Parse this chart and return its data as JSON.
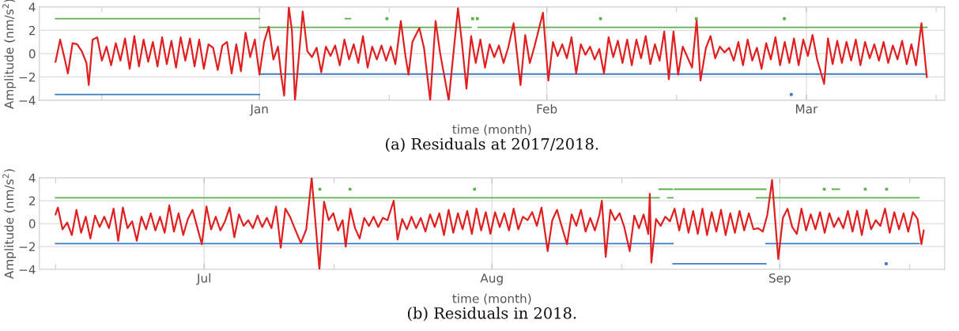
{
  "chart_data": [
    {
      "type": "line",
      "title": "(a) Residuals at 2017/2018.",
      "xlabel": "time (month)",
      "ylabel": "Amplitude (nm/s$^{2}$)",
      "xlim": [
        "2017-12-08T06:00",
        "2018-03-15T22:00"
      ],
      "xticks": [
        {
          "value": "2017-12-15",
          "label": null
        },
        {
          "value": "2018-01-01",
          "label": "Jan"
        },
        {
          "value": "2018-01-15",
          "label": null
        },
        {
          "value": "2018-02-01",
          "label": "Feb"
        },
        {
          "value": "2018-02-15",
          "label": null
        },
        {
          "value": "2018-03-01",
          "label": "Mar"
        },
        {
          "value": "2018-03-15",
          "label": null
        }
      ],
      "ylim": [
        -4,
        4
      ],
      "yticks": [
        -4,
        -2,
        0,
        2,
        4
      ],
      "grid": true,
      "series": [
        {
          "color": "#e02020",
          "x": [
            "2017-12-10T00:00",
            "2017-12-10T12:00",
            "2017-12-11T00:00",
            "2017-12-11T08:00",
            "2017-12-11T20:00",
            "2017-12-12T08:00",
            "2017-12-12T20:00",
            "2017-12-13T08:00",
            "2017-12-13T14:00",
            "2017-12-14T00:00",
            "2017-12-14T12:00",
            "2017-12-15T00:00",
            "2017-12-15T12:00",
            "2017-12-16T00:00",
            "2017-12-16T12:00",
            "2017-12-17T00:00",
            "2017-12-17T12:00",
            "2017-12-18T00:00",
            "2017-12-18T12:00",
            "2017-12-19T00:00",
            "2017-12-19T12:00",
            "2017-12-20T00:00",
            "2017-12-20T12:00",
            "2017-12-21T00:00",
            "2017-12-21T12:00",
            "2017-12-22T00:00",
            "2017-12-22T12:00",
            "2017-12-23T00:00",
            "2017-12-23T12:00",
            "2017-12-24T00:00",
            "2017-12-24T12:00",
            "2017-12-25T00:00",
            "2017-12-25T12:00",
            "2017-12-26T00:00",
            "2017-12-26T12:00",
            "2017-12-27T00:00",
            "2017-12-27T12:00",
            "2017-12-28T00:00",
            "2017-12-28T12:00",
            "2017-12-29T00:00",
            "2017-12-29T12:00",
            "2017-12-30T00:00",
            "2017-12-30T12:00",
            "2017-12-31T00:00",
            "2017-12-31T12:00",
            "2018-01-01T00:00",
            "2018-01-01T12:00",
            "2018-01-02T00:00",
            "2018-01-02T12:00",
            "2018-01-03T00:00",
            "2018-01-03T08:00",
            "2018-01-03T16:00",
            "2018-01-04T04:00",
            "2018-01-04T12:00",
            "2018-01-04T20:00",
            "2018-01-05T08:00",
            "2018-01-05T16:00",
            "2018-01-06T04:00",
            "2018-01-06T16:00",
            "2018-01-07T04:00",
            "2018-01-07T16:00",
            "2018-01-08T04:00",
            "2018-01-08T16:00",
            "2018-01-09T04:00",
            "2018-01-09T16:00",
            "2018-01-10T04:00",
            "2018-01-10T16:00",
            "2018-01-11T04:00",
            "2018-01-11T16:00",
            "2018-01-12T04:00",
            "2018-01-12T16:00",
            "2018-01-13T04:00",
            "2018-01-13T16:00",
            "2018-01-14T04:00",
            "2018-01-14T16:00",
            "2018-01-15T04:00",
            "2018-01-15T16:00",
            "2018-01-16T06:00",
            "2018-01-16T18:00",
            "2018-01-17T02:00",
            "2018-01-17T12:00",
            "2018-01-18T06:00",
            "2018-01-18T18:00",
            "2018-01-19T10:00",
            "2018-01-20T00:00",
            "2018-01-20T12:00",
            "2018-01-21T10:00",
            "2018-01-22T10:00",
            "2018-01-22T20:00",
            "2018-01-23T08:00",
            "2018-01-23T20:00",
            "2018-01-24T08:00",
            "2018-01-24T20:00",
            "2018-01-25T08:00",
            "2018-01-25T20:00",
            "2018-01-26T08:00",
            "2018-01-26T20:00",
            "2018-01-27T08:00",
            "2018-01-27T20:00",
            "2018-01-28T10:00",
            "2018-01-29T04:00",
            "2018-01-29T16:00",
            "2018-01-30T04:00",
            "2018-01-30T16:00",
            "2018-01-31T14:00",
            "2018-02-01T04:00",
            "2018-02-01T16:00",
            "2018-02-02T04:00",
            "2018-02-02T16:00",
            "2018-02-03T04:00",
            "2018-02-03T16:00",
            "2018-02-04T04:00",
            "2018-02-04T16:00",
            "2018-02-05T04:00",
            "2018-02-05T16:00",
            "2018-02-06T04:00",
            "2018-02-06T16:00",
            "2018-02-07T04:00",
            "2018-02-07T16:00",
            "2018-02-08T04:00",
            "2018-02-08T16:00",
            "2018-02-09T04:00",
            "2018-02-09T16:00",
            "2018-02-10T04:00",
            "2018-02-10T16:00",
            "2018-02-11T04:00",
            "2018-02-11T16:00",
            "2018-02-12T04:00",
            "2018-02-12T16:00",
            "2018-02-13T04:00",
            "2018-02-13T16:00",
            "2018-02-14T04:00",
            "2018-02-14T16:00",
            "2018-02-15T04:00",
            "2018-02-15T16:00",
            "2018-02-16T04:00",
            "2018-02-16T16:00",
            "2018-02-17T04:00",
            "2018-02-17T14:00",
            "2018-02-18T04:00",
            "2018-02-18T16:00",
            "2018-02-19T04:00",
            "2018-02-19T16:00",
            "2018-02-20T04:00",
            "2018-02-20T16:00",
            "2018-02-21T04:00",
            "2018-02-21T16:00",
            "2018-02-22T04:00",
            "2018-02-22T16:00",
            "2018-02-23T04:00",
            "2018-02-23T16:00",
            "2018-02-24T04:00",
            "2018-02-24T16:00",
            "2018-02-25T04:00",
            "2018-02-25T16:00",
            "2018-02-26T04:00",
            "2018-02-26T16:00",
            "2018-02-27T04:00",
            "2018-02-27T16:00",
            "2018-02-28T04:00",
            "2018-02-28T16:00",
            "2018-03-01T04:00",
            "2018-03-01T16:00",
            "2018-03-02T04:00",
            "2018-03-02T22:00",
            "2018-03-03T08:00",
            "2018-03-03T20:00",
            "2018-03-04T08:00",
            "2018-03-04T20:00",
            "2018-03-05T08:00",
            "2018-03-05T20:00",
            "2018-03-06T08:00",
            "2018-03-06T20:00",
            "2018-03-07T08:00",
            "2018-03-07T20:00",
            "2018-03-08T08:00",
            "2018-03-08T20:00",
            "2018-03-09T08:00",
            "2018-03-09T20:00",
            "2018-03-10T08:00",
            "2018-03-10T20:00",
            "2018-03-11T08:00",
            "2018-03-11T20:00",
            "2018-03-12T08:00",
            "2018-03-12T20:00",
            "2018-03-13T10:00",
            "2018-03-14T00:00"
          ],
          "values": [
            -0.7,
            1.2,
            -0.5,
            -1.7,
            0.9,
            0.8,
            0.2,
            -0.8,
            -2.7,
            1.2,
            1.4,
            -0.6,
            0.6,
            -1.0,
            0.9,
            -0.6,
            1.3,
            -1.3,
            1.5,
            -1.1,
            1.2,
            -0.7,
            1.0,
            -1.1,
            1.4,
            -0.9,
            1.1,
            -1.2,
            1.4,
            -0.6,
            1.3,
            -1.1,
            1.2,
            -1.3,
            0.8,
            0.5,
            -1.4,
            0.7,
            1.0,
            -1.7,
            0.8,
            -1.5,
            1.8,
            -0.3,
            1.2,
            -1.8,
            1.0,
            2.3,
            -0.5,
            0.6,
            -1.8,
            -3.6,
            4.0,
            2.0,
            -4.0,
            0.5,
            3.6,
            0.2,
            -0.3,
            0.5,
            -1.6,
            0.6,
            -0.2,
            0.7,
            -1.0,
            1.2,
            -0.5,
            0.8,
            -0.8,
            1.5,
            -1.2,
            0.6,
            -0.5,
            0.7,
            -0.6,
            0.6,
            -0.9,
            2.8,
            -0.2,
            -1.8,
            1.0,
            2.2,
            0.5,
            -4.0,
            2.8,
            0.0,
            -4.0,
            3.9,
            1.0,
            -3.0,
            1.5,
            -0.8,
            1.2,
            -1.2,
            0.8,
            -0.3,
            0.7,
            -0.8,
            0.5,
            2.6,
            -2.7,
            1.6,
            -0.8,
            0.6,
            3.5,
            -2.3,
            1.0,
            -0.2,
            0.8,
            -0.4,
            1.4,
            -1.7,
            0.8,
            -0.1,
            0.6,
            -0.5,
            0.4,
            -1.7,
            1.4,
            -0.3,
            1.1,
            -0.8,
            1.2,
            -1.0,
            1.2,
            -0.4,
            1.5,
            -0.9,
            0.8,
            -0.6,
            1.9,
            -2.2,
            1.9,
            -1.8,
            0.6,
            -0.3,
            -1.2,
            2.9,
            -2.3,
            0.5,
            1.5,
            -0.4,
            0.6,
            0.1,
            0.5,
            -0.6,
            1.0,
            -1.0,
            1.2,
            -0.6,
            0.5,
            -1.3,
            0.9,
            -0.5,
            1.4,
            -1.0,
            1.0,
            -0.8,
            1.3,
            -1.0,
            1.2,
            -0.2,
            1.6,
            -0.5,
            -2.6,
            1.3,
            -0.9,
            1.1,
            -0.8,
            1.0,
            -0.6,
            1.2,
            -1.0,
            1.0,
            -0.4,
            0.8,
            -0.6,
            1.0,
            -0.8,
            0.7,
            -0.5,
            1.1,
            -0.9,
            0.8,
            -1.0,
            2.6,
            -2.0
          ]
        },
        {
          "color": "#5cb04c",
          "x": [
            "2017-12-10",
            "2018-01-01"
          ],
          "values": [
            3.0,
            3.0
          ]
        },
        {
          "color": "#5cb04c",
          "x": [
            "2018-01-01",
            "2018-01-23T20:00"
          ],
          "values": [
            2.25,
            2.25
          ]
        },
        {
          "color": "#5cb04c",
          "x": [
            "2018-01-24T14:00",
            "2018-03-14"
          ],
          "values": [
            2.25,
            2.25
          ]
        },
        {
          "color": "#5cb04c",
          "x": [
            "2018-01-10T06:00",
            "2018-01-10T20:00"
          ],
          "values": [
            3.0,
            3.0
          ]
        },
        {
          "type": "scatter",
          "marker": "square",
          "color": "#5cb04c",
          "x": [
            "2018-01-14T18:00",
            "2018-01-24T00:00",
            "2018-01-24T12:00",
            "2018-02-06T19:00",
            "2018-02-17T03:00",
            "2018-02-26T15:00"
          ],
          "values": [
            3.0,
            3.0,
            3.0,
            3.0,
            3.0,
            3.0
          ]
        },
        {
          "color": "#3d7cc4",
          "x": [
            "2017-12-10",
            "2018-01-01"
          ],
          "values": [
            -3.5,
            -3.5
          ]
        },
        {
          "color": "#3d7cc4",
          "x": [
            "2018-01-01",
            "2018-03-14"
          ],
          "values": [
            -1.75,
            -1.75
          ]
        },
        {
          "type": "scatter",
          "marker": "square",
          "color": "#3d7cc4",
          "x": [
            "2018-02-27T09:00"
          ],
          "values": [
            -3.5
          ]
        }
      ]
    },
    {
      "type": "line",
      "title": "(b) Residuals in 2018.",
      "xlabel": "time (month)",
      "ylabel": "Amplitude (nm/s$^{2}$)",
      "xlim": [
        "2018-06-13T06:00",
        "2018-09-18T18:00"
      ],
      "xticks": [
        {
          "value": "2018-06-15",
          "label": null
        },
        {
          "value": "2018-07-01",
          "label": "Jul"
        },
        {
          "value": "2018-07-15",
          "label": null
        },
        {
          "value": "2018-08-01",
          "label": "Aug"
        },
        {
          "value": "2018-08-15",
          "label": null
        },
        {
          "value": "2018-09-01",
          "label": "Sep"
        },
        {
          "value": "2018-09-15",
          "label": null
        }
      ],
      "ylim": [
        -4,
        4
      ],
      "yticks": [
        -4,
        -2,
        0,
        2,
        4
      ],
      "grid": true,
      "series": [
        {
          "color": "#e02020",
          "x": [
            "2018-06-15T00:00",
            "2018-06-15T06:00",
            "2018-06-15T18:00",
            "2018-06-16T06:00",
            "2018-06-16T18:00",
            "2018-06-17T06:00",
            "2018-06-17T18:00",
            "2018-06-18T06:00",
            "2018-06-18T18:00",
            "2018-06-19T06:00",
            "2018-06-19T18:00",
            "2018-06-20T06:00",
            "2018-06-20T18:00",
            "2018-06-21T06:00",
            "2018-06-21T18:00",
            "2018-06-22T06:00",
            "2018-06-22T18:00",
            "2018-06-23T06:00",
            "2018-06-23T18:00",
            "2018-06-24T06:00",
            "2018-06-24T18:00",
            "2018-06-25T06:00",
            "2018-06-25T18:00",
            "2018-06-26T06:00",
            "2018-06-26T18:00",
            "2018-06-27T06:00",
            "2018-06-27T18:00",
            "2018-06-28T06:00",
            "2018-06-28T18:00",
            "2018-06-29T06:00",
            "2018-06-29T18:00",
            "2018-06-30T18:00",
            "2018-07-01T06:00",
            "2018-07-01T18:00",
            "2018-07-02T06:00",
            "2018-07-02T18:00",
            "2018-07-03T06:00",
            "2018-07-03T18:00",
            "2018-07-04T06:00",
            "2018-07-04T18:00",
            "2018-07-05T06:00",
            "2018-07-05T18:00",
            "2018-07-06T06:00",
            "2018-07-06T18:00",
            "2018-07-07T06:00",
            "2018-07-07T18:00",
            "2018-07-08T06:00",
            "2018-07-08T18:00",
            "2018-07-09T06:00",
            "2018-07-09T18:00",
            "2018-07-10T06:00",
            "2018-07-10T18:00",
            "2018-07-11T10:00",
            "2018-07-12T00:00",
            "2018-07-12T14:00",
            "2018-07-13T10:00",
            "2018-07-13T22:00",
            "2018-07-14T10:00",
            "2018-07-14T22:00",
            "2018-07-15T10:00",
            "2018-07-15T22:00",
            "2018-07-16T06:00",
            "2018-07-16T18:00",
            "2018-07-17T06:00",
            "2018-07-17T18:00",
            "2018-07-18T06:00",
            "2018-07-18T18:00",
            "2018-07-19T06:00",
            "2018-07-19T18:00",
            "2018-07-20T06:00",
            "2018-07-20T18:00",
            "2018-07-21T10:00",
            "2018-07-21T20:00",
            "2018-07-22T08:00",
            "2018-07-22T20:00",
            "2018-07-23T08:00",
            "2018-07-23T20:00",
            "2018-07-24T08:00",
            "2018-07-24T20:00",
            "2018-07-25T08:00",
            "2018-07-25T20:00",
            "2018-07-26T08:00",
            "2018-07-26T20:00",
            "2018-07-27T08:00",
            "2018-07-27T20:00",
            "2018-07-28T08:00",
            "2018-07-28T20:00",
            "2018-07-29T08:00",
            "2018-07-29T20:00",
            "2018-07-30T08:00",
            "2018-07-30T20:00",
            "2018-07-31T08:00",
            "2018-07-31T20:00",
            "2018-08-01T08:00",
            "2018-08-01T20:00",
            "2018-08-02T08:00",
            "2018-08-02T20:00",
            "2018-08-03T08:00",
            "2018-08-03T20:00",
            "2018-08-04T08:00",
            "2018-08-04T20:00",
            "2018-08-05T08:00",
            "2018-08-05T20:00",
            "2018-08-06T08:00",
            "2018-08-07T00:00",
            "2018-08-07T12:00",
            "2018-08-08T00:00",
            "2018-08-08T12:00",
            "2018-08-09T02:00",
            "2018-08-09T14:00",
            "2018-08-10T02:00",
            "2018-08-10T14:00",
            "2018-08-11T02:00",
            "2018-08-11T14:00",
            "2018-08-12T02:00",
            "2018-08-12T14:00",
            "2018-08-12T20:00",
            "2018-08-13T06:00",
            "2018-08-13T18:00",
            "2018-08-14T06:00",
            "2018-08-14T18:00",
            "2018-08-15T06:00",
            "2018-08-15T20:00",
            "2018-08-16T08:00",
            "2018-08-16T20:00",
            "2018-08-17T08:00",
            "2018-08-17T20:00",
            "2018-08-18T00:00",
            "2018-08-18T04:00",
            "2018-08-18T16:00",
            "2018-08-19T04:00",
            "2018-08-19T16:00",
            "2018-08-20T04:00",
            "2018-08-20T16:00",
            "2018-08-21T04:00",
            "2018-08-21T16:00",
            "2018-08-22T04:00",
            "2018-08-22T16:00",
            "2018-08-23T04:00",
            "2018-08-23T16:00",
            "2018-08-24T04:00",
            "2018-08-24T16:00",
            "2018-08-25T04:00",
            "2018-08-25T16:00",
            "2018-08-26T04:00",
            "2018-08-26T16:00",
            "2018-08-27T04:00",
            "2018-08-27T16:00",
            "2018-08-28T04:00",
            "2018-08-28T16:00",
            "2018-08-29T04:00",
            "2018-08-29T16:00",
            "2018-08-30T04:00",
            "2018-08-30T16:00",
            "2018-08-31T04:00",
            "2018-08-31T20:00",
            "2018-09-01T08:00",
            "2018-09-01T20:00",
            "2018-09-02T08:00",
            "2018-09-02T20:00",
            "2018-09-03T08:00",
            "2018-09-03T20:00",
            "2018-09-04T08:00",
            "2018-09-04T20:00",
            "2018-09-05T08:00",
            "2018-09-05T20:00",
            "2018-09-06T08:00",
            "2018-09-06T20:00",
            "2018-09-07T08:00",
            "2018-09-07T20:00",
            "2018-09-08T08:00",
            "2018-09-08T20:00",
            "2018-09-09T08:00",
            "2018-09-09T20:00",
            "2018-09-10T08:00",
            "2018-09-10T20:00",
            "2018-09-11T08:00",
            "2018-09-11T20:00",
            "2018-09-12T08:00",
            "2018-09-12T20:00",
            "2018-09-13T08:00",
            "2018-09-13T20:00",
            "2018-09-14T08:00",
            "2018-09-14T20:00",
            "2018-09-15T08:00",
            "2018-09-15T20:00",
            "2018-09-16T06:00",
            "2018-09-16T12:00"
          ],
          "values": [
            0.8,
            1.4,
            -0.5,
            0.1,
            -1.0,
            1.2,
            -0.8,
            0.6,
            -1.3,
            0.7,
            -0.3,
            0.6,
            -0.4,
            1.3,
            -1.5,
            1.4,
            -0.4,
            0.2,
            -1.5,
            0.6,
            -0.5,
            0.9,
            -0.6,
            0.6,
            -0.8,
            1.6,
            -0.7,
            0.9,
            -1.0,
            0.4,
            1.2,
            -1.8,
            1.5,
            -0.5,
            0.6,
            -0.6,
            0.2,
            1.4,
            -1.2,
            0.8,
            -0.2,
            0.3,
            -0.4,
            0.7,
            -0.3,
            0.5,
            -0.4,
            1.5,
            -2.1,
            1.3,
            0.6,
            -0.4,
            -1.7,
            -0.5,
            4.0,
            -4.0,
            1.9,
            0.3,
            0.9,
            -0.6,
            0.3,
            -2.0,
            1.3,
            -0.4,
            -1.3,
            0.5,
            -0.2,
            0.6,
            -0.3,
            0.5,
            0.3,
            2.0,
            -1.4,
            0.4,
            -0.5,
            0.6,
            -0.4,
            0.5,
            -0.7,
            0.8,
            -0.3,
            0.9,
            -1.0,
            1.2,
            -0.8,
            0.9,
            -0.5,
            1.1,
            -0.9,
            1.3,
            -0.6,
            1.0,
            -0.9,
            1.0,
            -0.3,
            0.9,
            -0.6,
            1.3,
            -0.5,
            0.6,
            0.3,
            1.0,
            -0.2,
            1.4,
            -2.4,
            0.3,
            1.2,
            -0.2,
            -1.8,
            0.8,
            -0.2,
            1.2,
            -0.7,
            0.5,
            -0.6,
            0.8,
            2.0,
            -2.9,
            1.2,
            0.3,
            0.9,
            -0.3,
            -2.4,
            0.7,
            -0.4,
            0.8,
            -0.9,
            2.6,
            -3.4,
            0.4,
            -0.2,
            0.6,
            0.2,
            1.3,
            -0.6,
            1.3,
            -0.8,
            1.1,
            -0.9,
            1.3,
            -1.0,
            1.0,
            -0.7,
            1.2,
            -1.0,
            0.9,
            -0.8,
            1.1,
            -0.6,
            0.9,
            -0.5,
            -0.4,
            -0.7,
            0.8,
            3.8,
            -3.1,
            0.5,
            1.3,
            -0.3,
            -0.9,
            1.3,
            -0.6,
            0.8,
            -0.5,
            1.0,
            -0.8,
            0.9,
            -0.3,
            0.5,
            -0.4,
            1.1,
            -0.7,
            1.1,
            -1.0,
            1.2,
            -0.5,
            0.3,
            -0.2,
            1.3,
            -0.8,
            1.0,
            -0.5,
            0.9,
            -0.7,
            1.0,
            0.4,
            -1.8,
            -0.6
          ]
        },
        {
          "color": "#5cb04c",
          "x": [
            "2018-06-15",
            "2018-08-19"
          ],
          "values": [
            2.25,
            2.25
          ]
        },
        {
          "color": "#5cb04c",
          "x": [
            "2018-08-19",
            "2018-08-20T10:00"
          ],
          "values": [
            3.0,
            3.0
          ]
        },
        {
          "color": "#5cb04c",
          "x": [
            "2018-08-20T16:00",
            "2018-08-30T12:00"
          ],
          "values": [
            3.0,
            3.0
          ]
        },
        {
          "color": "#5cb04c",
          "x": [
            "2018-08-19T22:00",
            "2018-08-20T12:00"
          ],
          "values": [
            2.25,
            2.25
          ]
        },
        {
          "color": "#5cb04c",
          "x": [
            "2018-08-29T12:00",
            "2018-09-16"
          ],
          "values": [
            2.25,
            2.25
          ]
        },
        {
          "type": "scatter",
          "marker": "square",
          "color": "#5cb04c",
          "x": [
            "2018-07-13T11:00",
            "2018-07-16T17:00",
            "2018-07-30T03:00",
            "2018-09-05T19:00",
            "2018-09-10T05:00",
            "2018-09-12T12:00"
          ],
          "values": [
            3.0,
            3.0,
            3.0,
            3.0,
            3.0,
            3.0
          ]
        },
        {
          "color": "#5cb04c",
          "x": [
            "2018-09-06T16:00",
            "2018-09-07T10:00"
          ],
          "values": [
            3.0,
            3.0
          ]
        },
        {
          "color": "#3d7cc4",
          "x": [
            "2018-06-15",
            "2018-08-20T12:00"
          ],
          "values": [
            -1.75,
            -1.75
          ]
        },
        {
          "color": "#3d7cc4",
          "x": [
            "2018-08-20T12:00",
            "2018-08-30T12:00"
          ],
          "values": [
            -3.5,
            -3.5
          ]
        },
        {
          "color": "#3d7cc4",
          "x": [
            "2018-08-30T12:00",
            "2018-09-16"
          ],
          "values": [
            -1.75,
            -1.75
          ]
        },
        {
          "type": "scatter",
          "marker": "square",
          "color": "#3d7cc4",
          "x": [
            "2018-09-12T11:00"
          ],
          "values": [
            -3.5
          ]
        }
      ]
    }
  ]
}
